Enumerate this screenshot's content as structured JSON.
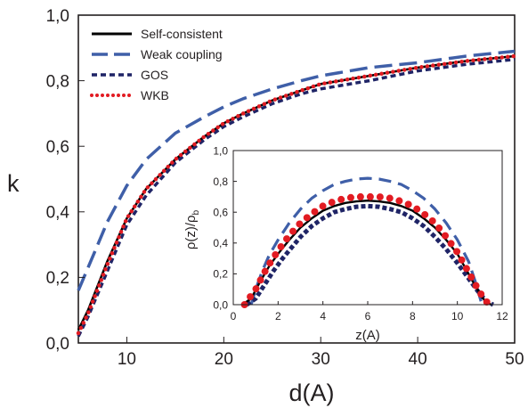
{
  "chart_data": [
    {
      "type": "line",
      "xlabel": "d(A)",
      "ylabel": "k",
      "xlim": [
        5,
        50
      ],
      "ylim": [
        0,
        1.0
      ],
      "xticks": [
        "10",
        "20",
        "30",
        "40",
        "50"
      ],
      "yticks": [
        "0,0",
        "0,2",
        "0,4",
        "0,6",
        "0,8",
        "1,0"
      ],
      "legend_position": "top-left",
      "series": [
        {
          "name": "Self-consistent",
          "color": "#000000",
          "style": "solid",
          "x": [
            5,
            6,
            8,
            10,
            12,
            15,
            18,
            20,
            22,
            25,
            28,
            30,
            35,
            40,
            45,
            50
          ],
          "y": [
            0.04,
            0.1,
            0.25,
            0.38,
            0.47,
            0.56,
            0.63,
            0.67,
            0.7,
            0.74,
            0.77,
            0.79,
            0.815,
            0.84,
            0.86,
            0.875
          ]
        },
        {
          "name": "Weak coupling",
          "color": "#3f5fa8",
          "style": "long-dash",
          "x": [
            5,
            6,
            8,
            10,
            12,
            15,
            18,
            20,
            22,
            25,
            28,
            30,
            35,
            40,
            45,
            50
          ],
          "y": [
            0.16,
            0.23,
            0.37,
            0.48,
            0.56,
            0.64,
            0.69,
            0.72,
            0.745,
            0.775,
            0.8,
            0.815,
            0.84,
            0.855,
            0.875,
            0.89
          ]
        },
        {
          "name": "GOS",
          "color": "#1f2466",
          "style": "short-dash",
          "x": [
            5,
            6,
            8,
            10,
            12,
            15,
            18,
            20,
            22,
            25,
            28,
            30,
            35,
            40,
            45,
            50
          ],
          "y": [
            0.02,
            0.08,
            0.22,
            0.36,
            0.45,
            0.55,
            0.62,
            0.66,
            0.69,
            0.73,
            0.76,
            0.775,
            0.8,
            0.83,
            0.85,
            0.865
          ]
        },
        {
          "name": "WKB",
          "color": "#e21b22",
          "style": "dotted",
          "x": [
            5,
            6,
            8,
            10,
            12,
            15,
            18,
            20,
            22,
            25,
            28,
            30,
            35,
            40,
            45,
            50
          ],
          "y": [
            0.03,
            0.09,
            0.24,
            0.38,
            0.47,
            0.56,
            0.63,
            0.67,
            0.7,
            0.74,
            0.77,
            0.79,
            0.815,
            0.84,
            0.86,
            0.875
          ]
        }
      ]
    },
    {
      "type": "line",
      "inset": true,
      "xlabel": "z(A)",
      "ylabel": "ρ(z)/ρ",
      "ylabel_sub": "b",
      "xlim": [
        0,
        12
      ],
      "ylim": [
        0,
        1.0
      ],
      "xticks": [
        "0",
        "2",
        "4",
        "6",
        "8",
        "10",
        "12"
      ],
      "yticks": [
        "0,0",
        "0,2",
        "0,4",
        "0,6",
        "0,8",
        "1,0"
      ],
      "series": [
        {
          "name": "Self-consistent",
          "color": "#000000",
          "style": "solid",
          "x": [
            0.4,
            0.8,
            1.2,
            1.6,
            2,
            2.5,
            3,
            3.5,
            4,
            4.5,
            5,
            5.5,
            6,
            6.5,
            7,
            7.5,
            8,
            8.5,
            9,
            9.5,
            10,
            10.5,
            10.8,
            11.2,
            11.5
          ],
          "y": [
            0.0,
            0.04,
            0.15,
            0.25,
            0.33,
            0.42,
            0.5,
            0.56,
            0.61,
            0.64,
            0.66,
            0.67,
            0.675,
            0.67,
            0.66,
            0.64,
            0.61,
            0.56,
            0.5,
            0.42,
            0.33,
            0.2,
            0.12,
            0.03,
            0.0
          ]
        },
        {
          "name": "Weak coupling",
          "color": "#3f5fa8",
          "style": "long-dash",
          "x": [
            0.8,
            1.0,
            1.3,
            1.6,
            2,
            2.5,
            3,
            3.5,
            4,
            4.5,
            5,
            5.5,
            6,
            6.5,
            7,
            7.5,
            8,
            8.5,
            9,
            9.5,
            10,
            10.5,
            10.8,
            11.1
          ],
          "y": [
            0.0,
            0.1,
            0.22,
            0.32,
            0.42,
            0.53,
            0.62,
            0.69,
            0.74,
            0.78,
            0.8,
            0.815,
            0.82,
            0.815,
            0.8,
            0.78,
            0.74,
            0.69,
            0.62,
            0.53,
            0.42,
            0.28,
            0.15,
            0.0
          ]
        },
        {
          "name": "GOS",
          "color": "#1f2466",
          "style": "short-dash",
          "x": [
            0.6,
            1.0,
            1.4,
            1.8,
            2.2,
            2.6,
            3,
            3.5,
            4,
            4.5,
            5,
            5.5,
            6,
            6.5,
            7,
            7.5,
            8,
            8.5,
            9,
            9.5,
            10,
            10.5,
            10.9,
            11.3,
            11.6
          ],
          "y": [
            0.0,
            0.04,
            0.13,
            0.22,
            0.3,
            0.37,
            0.44,
            0.51,
            0.56,
            0.6,
            0.62,
            0.635,
            0.64,
            0.635,
            0.62,
            0.6,
            0.56,
            0.51,
            0.44,
            0.36,
            0.27,
            0.17,
            0.09,
            0.02,
            0.0
          ]
        },
        {
          "name": "WKB",
          "color": "#e21b22",
          "style": "dotted",
          "x": [
            0.5,
            1.0,
            1.5,
            2,
            2.5,
            3,
            3.5,
            4,
            4.5,
            5,
            5.5,
            6,
            6.5,
            7,
            7.5,
            8,
            8.5,
            9,
            9.5,
            10,
            10.5,
            11,
            11.4
          ],
          "y": [
            0.0,
            0.1,
            0.24,
            0.35,
            0.45,
            0.53,
            0.59,
            0.64,
            0.67,
            0.69,
            0.7,
            0.7,
            0.7,
            0.69,
            0.67,
            0.64,
            0.59,
            0.53,
            0.44,
            0.34,
            0.21,
            0.08,
            0.0
          ]
        }
      ]
    }
  ]
}
